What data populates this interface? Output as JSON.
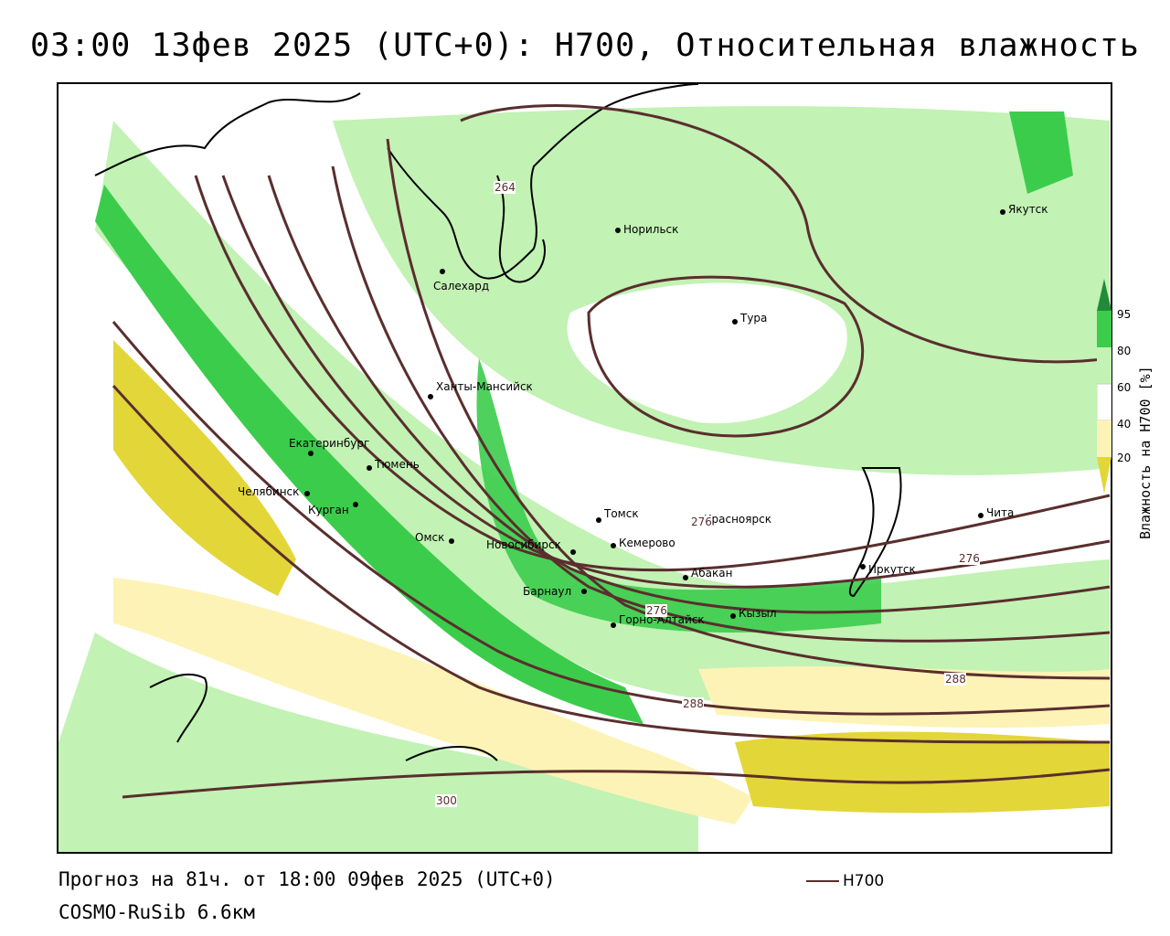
{
  "title": "03:00 13фев 2025 (UTC+0): H700, Относительная влажность",
  "cities": [
    {
      "name": "Якутск"
    },
    {
      "name": "Норильск"
    },
    {
      "name": "Салехард"
    },
    {
      "name": "Тура"
    },
    {
      "name": "Ханты-Мансийск"
    },
    {
      "name": "Екатеринбург"
    },
    {
      "name": "Тюмень"
    },
    {
      "name": "Челябинск"
    },
    {
      "name": "Курган"
    },
    {
      "name": "Омск"
    },
    {
      "name": "Новосибирск"
    },
    {
      "name": "Томск"
    },
    {
      "name": "Красноярск"
    },
    {
      "name": "Кемерово"
    },
    {
      "name": "Абакан"
    },
    {
      "name": "Барнаул"
    },
    {
      "name": "Горно-Алтайск"
    },
    {
      "name": "Кызыл"
    },
    {
      "name": "Иркутск"
    },
    {
      "name": "Чита"
    }
  ],
  "contour_labels": [
    "264",
    "276",
    "276",
    "276",
    "288",
    "288",
    "300"
  ],
  "legend": {
    "title": "Влажность на H700 [%]",
    "ticks": [
      "95",
      "80",
      "60",
      "40",
      "20"
    ],
    "colors": {
      "c95": "#228b3b",
      "c80": "#3ccc4c",
      "c60": "#c2f2b4",
      "c40": "#ffffff",
      "c20": "#fdf3b6",
      "c0": "#e3d638"
    }
  },
  "contour_color": "#5a2e2e",
  "footer": {
    "forecast": "Прогноз на 81ч. от 18:00 09фев 2025 (UTC+0)",
    "model": "COSMO-RuSib 6.6км"
  },
  "key_label": "H700"
}
